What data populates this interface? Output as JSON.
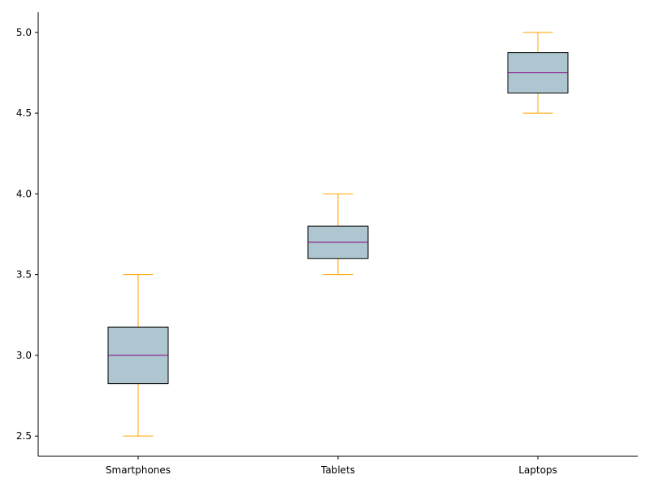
{
  "chart_data": {
    "type": "box",
    "title": "",
    "xlabel": "",
    "ylabel": "",
    "categories": [
      "Smartphones",
      "Tablets",
      "Laptops"
    ],
    "boxes": [
      {
        "category": "Smartphones",
        "whisker_low": 2.5,
        "q1": 2.825,
        "median": 3.0,
        "q3": 3.175,
        "whisker_high": 3.5
      },
      {
        "category": "Tablets",
        "whisker_low": 3.5,
        "q1": 3.6,
        "median": 3.7,
        "q3": 3.8,
        "whisker_high": 4.0
      },
      {
        "category": "Laptops",
        "whisker_low": 4.5,
        "q1": 4.625,
        "median": 4.75,
        "q3": 4.875,
        "whisker_high": 5.0
      }
    ],
    "ylim": [
      2.375,
      5.125
    ],
    "yticks": [
      "2.5",
      "3.0",
      "3.5",
      "4.0",
      "4.5",
      "5.0"
    ],
    "grid": false,
    "colors": {
      "box_fill": "#aec6cf",
      "box_edge": "#000000",
      "median": "#800080",
      "whisker": "#ffa500",
      "axis": "#000000"
    }
  }
}
